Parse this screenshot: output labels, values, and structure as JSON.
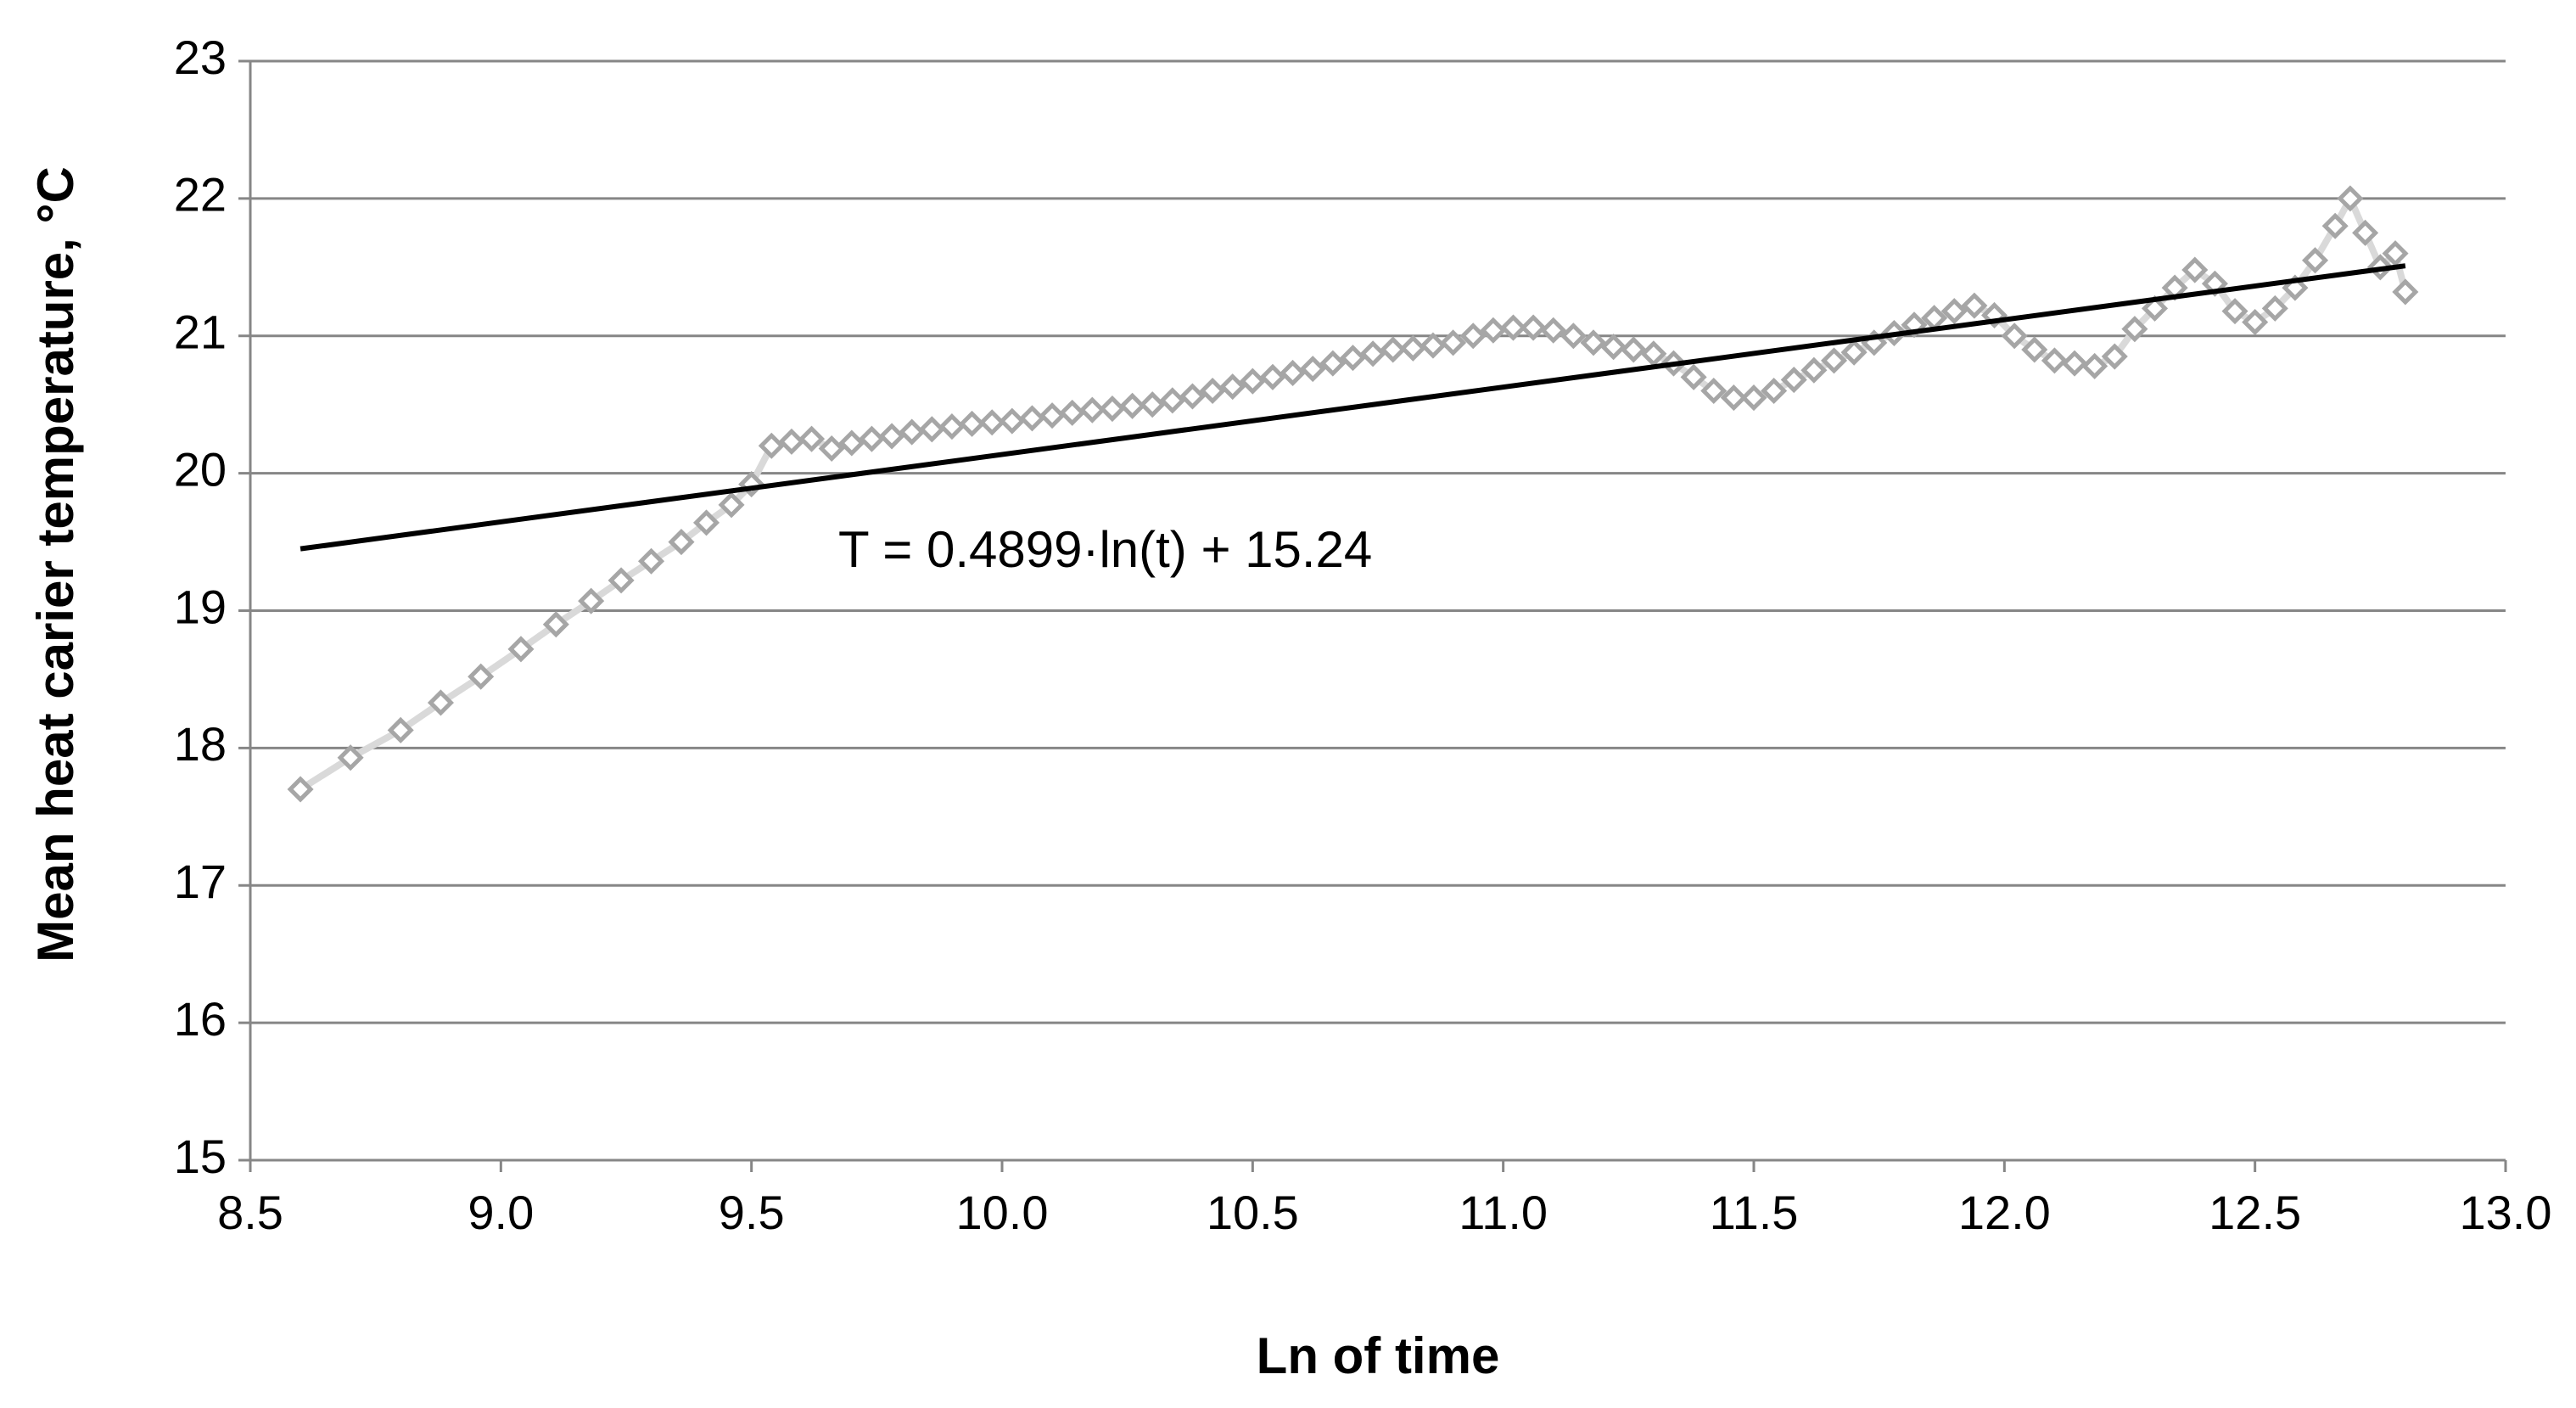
{
  "chart_data": {
    "type": "scatter",
    "x_label": "Ln of time",
    "y_label": "Mean heat carier temperature, °C",
    "annotation": "T = 0.4899·ln(t) + 15.24",
    "xlim": [
      8.5,
      13.0
    ],
    "xticks": [
      8.5,
      {
        "value": 9,
        "label": "9.0"
      },
      9.5,
      {
        "value": 10,
        "label": "10.0"
      },
      10.5,
      {
        "value": 11,
        "label": "11.0"
      },
      11.5,
      {
        "value": 12,
        "label": "12.0"
      },
      12.5,
      {
        "value": 13,
        "label": "13.0"
      }
    ],
    "ylim": [
      15,
      23
    ],
    "yticks": [
      15,
      16,
      17,
      18,
      19,
      20,
      21,
      22,
      23
    ],
    "grid": true,
    "series": [
      {
        "color": "#a6a6a6",
        "marker": "diamond",
        "line": true,
        "x": [
          8.6,
          8.7,
          8.8,
          8.88,
          8.96,
          9.04,
          9.11,
          9.18,
          9.24,
          9.3,
          9.36,
          9.41,
          9.46,
          9.5,
          9.54,
          9.58,
          9.62,
          9.66,
          9.7,
          9.74,
          9.78,
          9.82,
          9.86,
          9.9,
          9.94,
          9.98,
          10.02,
          10.06,
          10.1,
          10.14,
          10.18,
          10.22,
          10.26,
          10.3,
          10.34,
          10.38,
          10.42,
          10.46,
          10.5,
          10.54,
          10.58,
          10.62,
          10.66,
          10.7,
          10.74,
          10.78,
          10.82,
          10.86,
          10.9,
          10.94,
          10.98,
          11.02,
          11.06,
          11.1,
          11.14,
          11.18,
          11.22,
          11.26,
          11.3,
          11.34,
          11.38,
          11.42,
          11.46,
          11.5,
          11.54,
          11.58,
          11.62,
          11.66,
          11.7,
          11.74,
          11.78,
          11.82,
          11.86,
          11.9,
          11.94,
          11.98,
          12.02,
          12.06,
          12.1,
          12.14,
          12.18,
          12.22,
          12.26,
          12.3,
          12.34,
          12.38,
          12.42,
          12.46,
          12.5,
          12.54,
          12.58,
          12.62,
          12.66,
          12.69,
          12.72,
          12.75,
          12.78,
          12.8
        ],
        "values": [
          17.7,
          17.93,
          18.13,
          18.33,
          18.52,
          18.72,
          18.9,
          19.07,
          19.22,
          19.36,
          19.5,
          19.64,
          19.77,
          19.92,
          20.2,
          20.23,
          20.25,
          20.18,
          20.22,
          20.25,
          20.27,
          20.3,
          20.32,
          20.34,
          20.36,
          20.37,
          20.38,
          20.4,
          20.42,
          20.44,
          20.46,
          20.47,
          20.49,
          20.5,
          20.53,
          20.56,
          20.6,
          20.63,
          20.67,
          20.7,
          20.73,
          20.76,
          20.8,
          20.84,
          20.87,
          20.9,
          20.91,
          20.93,
          20.95,
          21.0,
          21.04,
          21.06,
          21.06,
          21.04,
          21.0,
          20.95,
          20.92,
          20.9,
          20.87,
          20.8,
          20.7,
          20.6,
          20.55,
          20.55,
          20.6,
          20.68,
          20.75,
          20.82,
          20.88,
          20.95,
          21.02,
          21.08,
          21.13,
          21.18,
          21.22,
          21.15,
          21.0,
          20.9,
          20.82,
          20.8,
          20.78,
          20.85,
          21.05,
          21.2,
          21.35,
          21.48,
          21.38,
          21.18,
          21.1,
          21.2,
          21.35,
          21.55,
          21.8,
          22.0,
          21.75,
          21.5,
          21.6,
          21.32
        ]
      },
      {
        "color": "#000000",
        "marker": "none",
        "line": true,
        "x": [
          8.6,
          12.8
        ],
        "values": [
          19.45,
          21.51
        ]
      }
    ]
  }
}
